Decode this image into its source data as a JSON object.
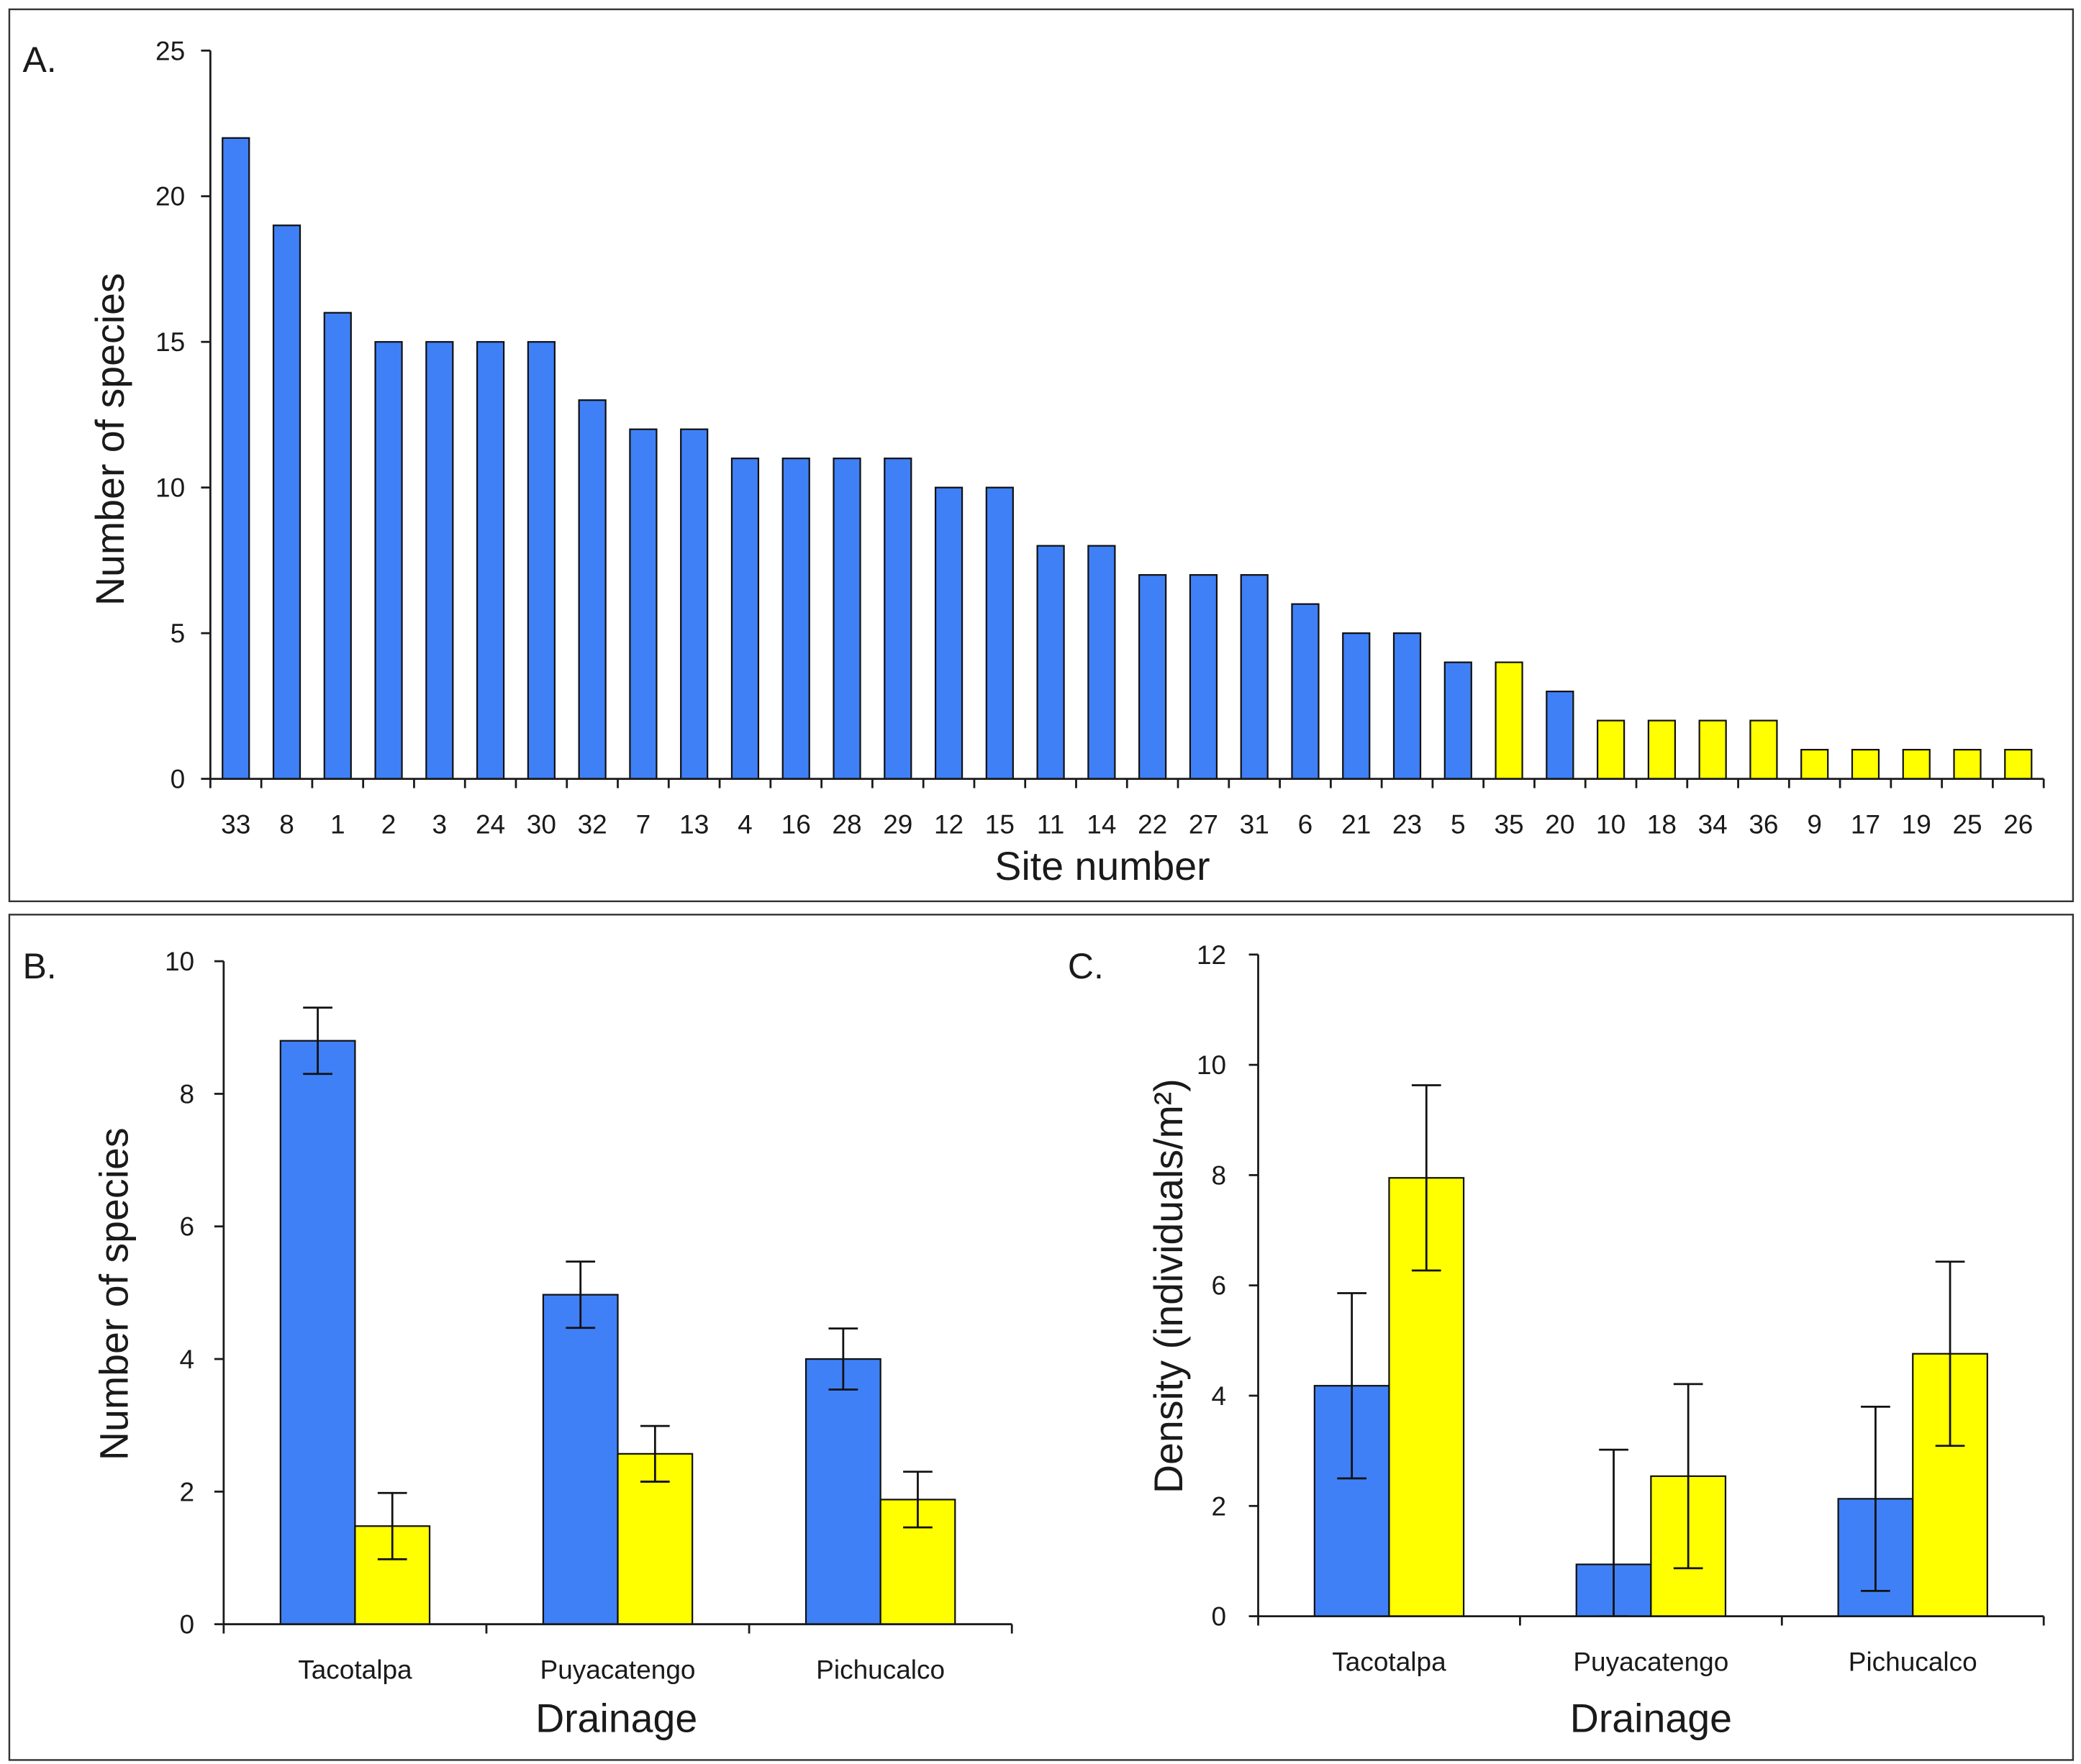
{
  "chart_data": [
    {
      "panel": "A.",
      "type": "bar",
      "title": "",
      "xlabel": "Site number",
      "ylabel": "Number of species",
      "ylim": [
        0,
        25
      ],
      "yticks": [
        0,
        5,
        10,
        15,
        20,
        25
      ],
      "categories": [
        "33",
        "8",
        "1",
        "2",
        "3",
        "24",
        "30",
        "32",
        "7",
        "13",
        "4",
        "16",
        "28",
        "29",
        "12",
        "15",
        "11",
        "14",
        "22",
        "27",
        "31",
        "6",
        "21",
        "23",
        "5",
        "35",
        "20",
        "10",
        "18",
        "34",
        "36",
        "9",
        "17",
        "19",
        "25",
        "26"
      ],
      "values": [
        22,
        19,
        16,
        15,
        15,
        15,
        15,
        13,
        12,
        12,
        11,
        11,
        11,
        11,
        10,
        10,
        8,
        8,
        7,
        7,
        7,
        6,
        5,
        5,
        4,
        4,
        3,
        2,
        2,
        2,
        2,
        1,
        1,
        1,
        1,
        1
      ],
      "colors": [
        "#3f80f6",
        "#3f80f6",
        "#3f80f6",
        "#3f80f6",
        "#3f80f6",
        "#3f80f6",
        "#3f80f6",
        "#3f80f6",
        "#3f80f6",
        "#3f80f6",
        "#3f80f6",
        "#3f80f6",
        "#3f80f6",
        "#3f80f6",
        "#3f80f6",
        "#3f80f6",
        "#3f80f6",
        "#3f80f6",
        "#3f80f6",
        "#3f80f6",
        "#3f80f6",
        "#3f80f6",
        "#3f80f6",
        "#3f80f6",
        "#3f80f6",
        "#ffff00",
        "#3f80f6",
        "#ffff00",
        "#ffff00",
        "#ffff00",
        "#ffff00",
        "#ffff00",
        "#ffff00",
        "#ffff00",
        "#ffff00",
        "#ffff00"
      ]
    },
    {
      "panel": "B.",
      "type": "bar",
      "title": "",
      "xlabel": "Drainage",
      "ylabel": "Number of species",
      "ylim": [
        0,
        10
      ],
      "yticks": [
        0,
        2,
        4,
        6,
        8,
        10
      ],
      "categories": [
        "Tacotalpa",
        "Puyacatengo",
        "Pichucalco"
      ],
      "series": [
        {
          "color": "#3f80f6",
          "values": [
            8.8,
            4.97,
            4.0
          ],
          "errors": [
            0.5,
            0.5,
            0.46
          ]
        },
        {
          "color": "#ffff00",
          "values": [
            1.48,
            2.57,
            1.88
          ],
          "errors": [
            0.5,
            0.42,
            0.42
          ]
        }
      ]
    },
    {
      "panel": "C.",
      "type": "bar",
      "title": "",
      "xlabel": "Drainage",
      "ylabel": "Density (individuals/m²)",
      "ylim": [
        0,
        12
      ],
      "yticks": [
        0,
        2,
        4,
        6,
        8,
        10,
        12
      ],
      "categories": [
        "Tacotalpa",
        "Puyacatengo",
        "Pichucalco"
      ],
      "series": [
        {
          "color": "#3f80f6",
          "values": [
            4.18,
            0.94,
            2.13
          ],
          "errors": [
            1.68,
            2.08,
            1.67
          ]
        },
        {
          "color": "#ffff00",
          "values": [
            7.95,
            2.54,
            4.76
          ],
          "errors": [
            1.68,
            1.67,
            1.67
          ]
        }
      ]
    }
  ]
}
